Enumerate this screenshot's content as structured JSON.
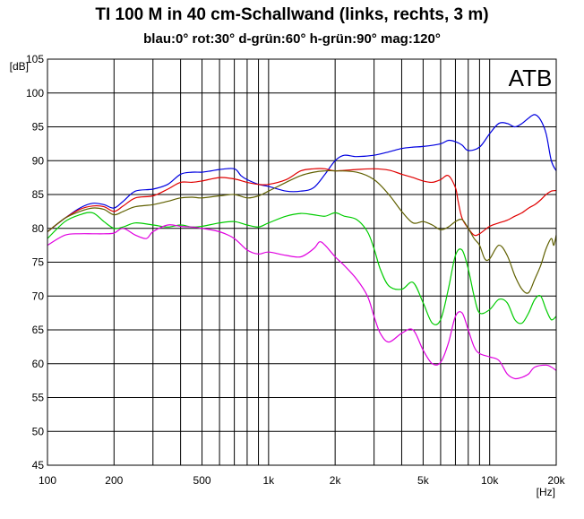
{
  "title": "TI 100 M in 40 cm-Schallwand  (links, rechts, 3 m)",
  "subtitle": "blau:0°  rot:30°  d-grün:60°  h-grün:90°  mag:120°",
  "chart_data": {
    "type": "line",
    "xscale": "log",
    "xlim": [
      100,
      20000
    ],
    "ylim": [
      45,
      105
    ],
    "ylabel": "[dB]",
    "xlabel": "[Hz]",
    "watermark": "ATB",
    "grid": true,
    "x_ticks": [
      100,
      200,
      500,
      1000,
      2000,
      5000,
      10000,
      20000
    ],
    "x_tick_labels": [
      "100",
      "200",
      "500",
      "1k",
      "2k",
      "5k",
      "10k",
      "20k"
    ],
    "y_ticks": [
      45,
      50,
      55,
      60,
      65,
      70,
      75,
      80,
      85,
      90,
      95,
      100,
      105
    ],
    "y_tick_labels": [
      "45",
      "50",
      "55",
      "60",
      "65",
      "70",
      "75",
      "80",
      "85",
      "90",
      "95",
      "100",
      "105"
    ],
    "series": [
      {
        "name": "blau:0°",
        "color": "#0000e0",
        "points": [
          [
            100,
            79.5
          ],
          [
            120,
            81.5
          ],
          [
            140,
            83
          ],
          [
            160,
            83.7
          ],
          [
            180,
            83.5
          ],
          [
            200,
            83
          ],
          [
            220,
            84
          ],
          [
            250,
            85.5
          ],
          [
            300,
            85.8
          ],
          [
            350,
            86.5
          ],
          [
            400,
            88
          ],
          [
            450,
            88.3
          ],
          [
            500,
            88.3
          ],
          [
            550,
            88.5
          ],
          [
            600,
            88.7
          ],
          [
            700,
            88.8
          ],
          [
            750,
            87.8
          ],
          [
            800,
            87.2
          ],
          [
            900,
            86.5
          ],
          [
            1000,
            86.2
          ],
          [
            1200,
            85.5
          ],
          [
            1400,
            85.5
          ],
          [
            1600,
            86
          ],
          [
            1800,
            88
          ],
          [
            2000,
            90
          ],
          [
            2200,
            90.8
          ],
          [
            2500,
            90.6
          ],
          [
            3000,
            90.8
          ],
          [
            3500,
            91.3
          ],
          [
            4000,
            91.8
          ],
          [
            4500,
            92
          ],
          [
            5000,
            92.1
          ],
          [
            6000,
            92.5
          ],
          [
            6500,
            93
          ],
          [
            7000,
            92.8
          ],
          [
            7500,
            92.3
          ],
          [
            8000,
            91.5
          ],
          [
            9000,
            92
          ],
          [
            10000,
            94
          ],
          [
            11000,
            95.5
          ],
          [
            12000,
            95.5
          ],
          [
            13000,
            95
          ],
          [
            14000,
            95.5
          ],
          [
            15000,
            96.3
          ],
          [
            16000,
            96.8
          ],
          [
            17000,
            96
          ],
          [
            18000,
            94
          ],
          [
            19000,
            90
          ],
          [
            20000,
            88.5
          ]
        ]
      },
      {
        "name": "rot:30°",
        "color": "#e00000",
        "points": [
          [
            100,
            79.5
          ],
          [
            120,
            81.5
          ],
          [
            140,
            82.8
          ],
          [
            160,
            83.3
          ],
          [
            180,
            83.2
          ],
          [
            200,
            82.5
          ],
          [
            220,
            83.3
          ],
          [
            250,
            84.5
          ],
          [
            300,
            84.8
          ],
          [
            350,
            85.8
          ],
          [
            400,
            86.8
          ],
          [
            450,
            86.8
          ],
          [
            500,
            87
          ],
          [
            600,
            87.5
          ],
          [
            700,
            87.3
          ],
          [
            800,
            86.8
          ],
          [
            900,
            86.5
          ],
          [
            1000,
            86.5
          ],
          [
            1200,
            87.2
          ],
          [
            1400,
            88.5
          ],
          [
            1600,
            88.8
          ],
          [
            1800,
            88.8
          ],
          [
            2000,
            88.5
          ],
          [
            2500,
            88.7
          ],
          [
            3000,
            88.8
          ],
          [
            3500,
            88.6
          ],
          [
            4000,
            88
          ],
          [
            4500,
            87.5
          ],
          [
            5000,
            87
          ],
          [
            5500,
            86.8
          ],
          [
            6000,
            87.2
          ],
          [
            6500,
            87.8
          ],
          [
            7000,
            86
          ],
          [
            7200,
            84
          ],
          [
            7500,
            81.5
          ],
          [
            8000,
            80
          ],
          [
            8500,
            79
          ],
          [
            9000,
            79.2
          ],
          [
            10000,
            80.3
          ],
          [
            11000,
            80.8
          ],
          [
            12000,
            81.2
          ],
          [
            13000,
            81.8
          ],
          [
            14000,
            82.3
          ],
          [
            15000,
            83
          ],
          [
            16000,
            83.5
          ],
          [
            17000,
            84.2
          ],
          [
            18000,
            85
          ],
          [
            19000,
            85.5
          ],
          [
            20000,
            85.6
          ]
        ]
      },
      {
        "name": "d-grün:60°",
        "color": "#606000",
        "points": [
          [
            100,
            79.5
          ],
          [
            120,
            81.5
          ],
          [
            140,
            82.5
          ],
          [
            160,
            83
          ],
          [
            180,
            82.8
          ],
          [
            200,
            82
          ],
          [
            220,
            82.5
          ],
          [
            250,
            83.2
          ],
          [
            300,
            83.5
          ],
          [
            350,
            84
          ],
          [
            400,
            84.5
          ],
          [
            450,
            84.6
          ],
          [
            500,
            84.5
          ],
          [
            600,
            84.8
          ],
          [
            700,
            85
          ],
          [
            800,
            84.5
          ],
          [
            900,
            84.8
          ],
          [
            1000,
            85.5
          ],
          [
            1200,
            86.8
          ],
          [
            1400,
            87.8
          ],
          [
            1600,
            88.3
          ],
          [
            1800,
            88.5
          ],
          [
            2000,
            88.5
          ],
          [
            2500,
            88.3
          ],
          [
            3000,
            87.2
          ],
          [
            3500,
            85
          ],
          [
            4000,
            82.5
          ],
          [
            4500,
            80.8
          ],
          [
            5000,
            81
          ],
          [
            5500,
            80.5
          ],
          [
            6000,
            79.8
          ],
          [
            6500,
            80.2
          ],
          [
            7000,
            81
          ],
          [
            7500,
            81.3
          ],
          [
            8000,
            80
          ],
          [
            8500,
            78.5
          ],
          [
            9000,
            77.5
          ],
          [
            9500,
            75.5
          ],
          [
            10000,
            75.5
          ],
          [
            11000,
            77.5
          ],
          [
            12000,
            76
          ],
          [
            13000,
            73
          ],
          [
            14000,
            71
          ],
          [
            15000,
            70.5
          ],
          [
            16000,
            72.5
          ],
          [
            17000,
            74.5
          ],
          [
            18000,
            77
          ],
          [
            19000,
            78.5
          ],
          [
            19500,
            77.5
          ],
          [
            20000,
            79
          ]
        ]
      },
      {
        "name": "h-grün:90°",
        "color": "#00cc00",
        "points": [
          [
            100,
            78.5
          ],
          [
            120,
            81
          ],
          [
            140,
            82
          ],
          [
            160,
            82.3
          ],
          [
            180,
            81
          ],
          [
            200,
            80
          ],
          [
            220,
            80.2
          ],
          [
            250,
            80.8
          ],
          [
            300,
            80.5
          ],
          [
            350,
            80.2
          ],
          [
            400,
            80.5
          ],
          [
            450,
            80.2
          ],
          [
            500,
            80.3
          ],
          [
            600,
            80.8
          ],
          [
            700,
            81
          ],
          [
            800,
            80.5
          ],
          [
            900,
            80.2
          ],
          [
            1000,
            80.8
          ],
          [
            1200,
            81.8
          ],
          [
            1400,
            82.2
          ],
          [
            1600,
            82
          ],
          [
            1800,
            81.8
          ],
          [
            2000,
            82.3
          ],
          [
            2200,
            81.8
          ],
          [
            2500,
            81.3
          ],
          [
            2800,
            79.5
          ],
          [
            3000,
            77
          ],
          [
            3200,
            74
          ],
          [
            3500,
            71.5
          ],
          [
            4000,
            71
          ],
          [
            4500,
            72
          ],
          [
            5000,
            69
          ],
          [
            5500,
            66
          ],
          [
            6000,
            66.5
          ],
          [
            6500,
            71
          ],
          [
            7000,
            76
          ],
          [
            7500,
            76.8
          ],
          [
            8000,
            74
          ],
          [
            8500,
            70
          ],
          [
            9000,
            67.5
          ],
          [
            10000,
            68
          ],
          [
            11000,
            69.5
          ],
          [
            12000,
            69
          ],
          [
            13000,
            66.5
          ],
          [
            14000,
            66
          ],
          [
            15000,
            67.5
          ],
          [
            16000,
            69.5
          ],
          [
            17000,
            70
          ],
          [
            18000,
            68
          ],
          [
            19000,
            66.5
          ],
          [
            20000,
            67
          ]
        ]
      },
      {
        "name": "mag:120°",
        "color": "#e000e0",
        "points": [
          [
            100,
            77.5
          ],
          [
            120,
            79
          ],
          [
            140,
            79.2
          ],
          [
            160,
            79.2
          ],
          [
            180,
            79.2
          ],
          [
            200,
            79.3
          ],
          [
            220,
            80
          ],
          [
            250,
            79
          ],
          [
            280,
            78.5
          ],
          [
            300,
            79.5
          ],
          [
            350,
            80.5
          ],
          [
            400,
            80.3
          ],
          [
            450,
            80.2
          ],
          [
            500,
            80
          ],
          [
            600,
            79.5
          ],
          [
            700,
            78.5
          ],
          [
            800,
            76.8
          ],
          [
            900,
            76.2
          ],
          [
            1000,
            76.5
          ],
          [
            1200,
            76
          ],
          [
            1400,
            75.8
          ],
          [
            1600,
            77
          ],
          [
            1700,
            78
          ],
          [
            1800,
            77.5
          ],
          [
            2000,
            75.8
          ],
          [
            2200,
            74.5
          ],
          [
            2500,
            72.5
          ],
          [
            2800,
            70
          ],
          [
            3000,
            67
          ],
          [
            3200,
            64.5
          ],
          [
            3500,
            63.2
          ],
          [
            4000,
            64.5
          ],
          [
            4500,
            65
          ],
          [
            5000,
            62
          ],
          [
            5500,
            60
          ],
          [
            6000,
            60.2
          ],
          [
            6500,
            63
          ],
          [
            7000,
            67
          ],
          [
            7500,
            67.5
          ],
          [
            8000,
            65
          ],
          [
            8500,
            62.5
          ],
          [
            9000,
            61.5
          ],
          [
            10000,
            61
          ],
          [
            11000,
            60.5
          ],
          [
            12000,
            58.5
          ],
          [
            13000,
            57.8
          ],
          [
            14000,
            58
          ],
          [
            15000,
            58.5
          ],
          [
            16000,
            59.5
          ],
          [
            18000,
            59.8
          ],
          [
            19000,
            59.5
          ],
          [
            20000,
            59
          ]
        ]
      }
    ]
  }
}
